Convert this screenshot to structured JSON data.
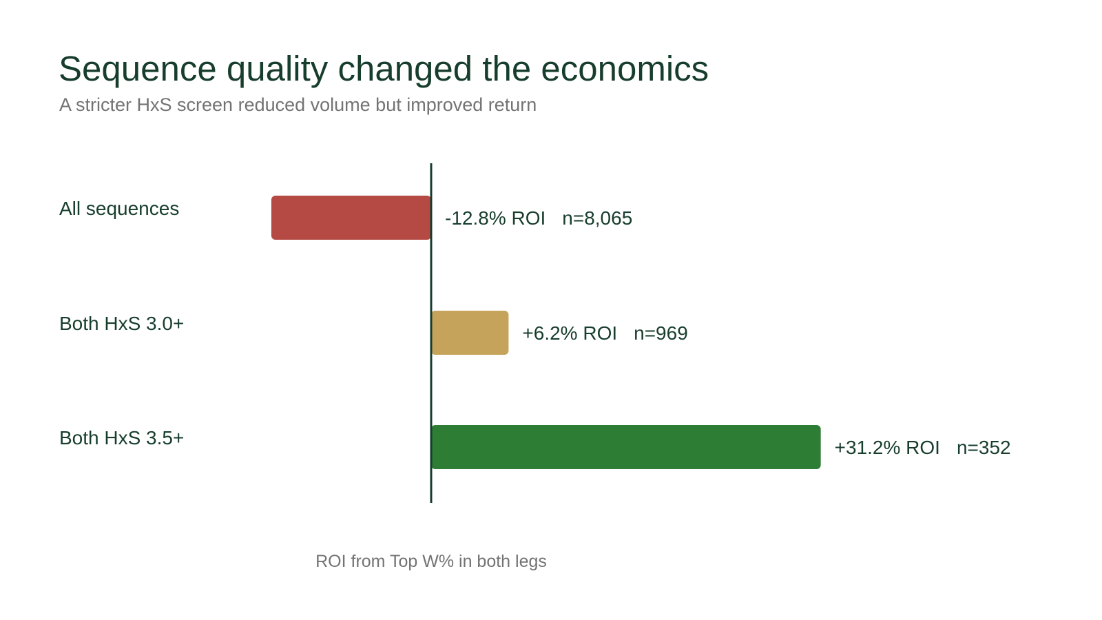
{
  "chart_data": {
    "type": "bar",
    "orientation": "horizontal",
    "title": "Sequence quality changed the economics",
    "subtitle": "A stricter HxS screen reduced volume but improved return",
    "xlabel": "ROI from Top W% in both legs",
    "ylabel": "",
    "categories": [
      "All sequences",
      "Both HxS 3.0+",
      "Both HxS 3.5+"
    ],
    "values": [
      -12.8,
      6.2,
      31.2
    ],
    "value_labels": [
      "-12.8% ROI",
      "+6.2% ROI",
      "+31.2% ROI"
    ],
    "counts": [
      "n=8,065",
      "n=969",
      "n=352"
    ],
    "colors": [
      "#b54a45",
      "#c6a35a",
      "#2e7d34"
    ],
    "xlim": [
      -14,
      36
    ],
    "grid": false,
    "legend": "none",
    "zero_line_color": "#173d2d"
  }
}
